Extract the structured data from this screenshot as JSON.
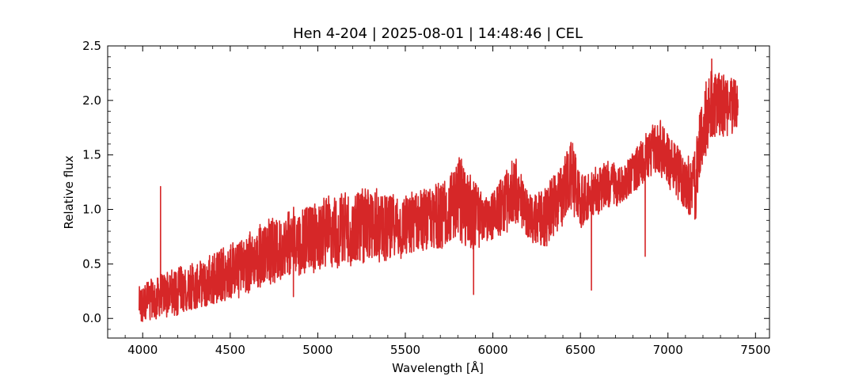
{
  "chart_data": {
    "type": "line",
    "title": "Hen 4-204 | 2025-08-01 | 14:48:46 | CEL",
    "xlabel": "Wavelength [Å]",
    "ylabel": "Relative flux",
    "xlim": [
      3800,
      7580
    ],
    "ylim": [
      -0.18,
      2.5
    ],
    "x_major_ticks": [
      4000,
      4500,
      5000,
      5500,
      6000,
      6500,
      7000,
      7500
    ],
    "x_tick_labels": [
      "4000",
      "4500",
      "5000",
      "5500",
      "6000",
      "6500",
      "7000",
      "7500"
    ],
    "x_minor_step": 100,
    "y_major_ticks": [
      0.0,
      0.5,
      1.0,
      1.5,
      2.0,
      2.5
    ],
    "y_tick_labels": [
      "0.0",
      "0.5",
      "1.0",
      "1.5",
      "2.0",
      "2.5"
    ],
    "y_minor_step": 0.1,
    "ticks_direction": "in",
    "ticks_on_all_sides": true,
    "grid": false,
    "legend": "none",
    "line_color": "#d62728",
    "series": [
      {
        "x_range": [
          3980,
          7400
        ],
        "envelope_x": [
          3980,
          4100,
          4300,
          4500,
          4700,
          4900,
          5100,
          5300,
          5500,
          5700,
          5800,
          5900,
          5950,
          6050,
          6130,
          6200,
          6300,
          6400,
          6450,
          6500,
          6550,
          6650,
          6750,
          6850,
          6950,
          7050,
          7100,
          7150,
          7200,
          7250,
          7300,
          7400
        ],
        "envelope_upper": [
          0.32,
          0.42,
          0.52,
          0.68,
          0.9,
          1.05,
          1.15,
          1.2,
          1.15,
          1.25,
          1.5,
          1.32,
          1.1,
          1.3,
          1.5,
          1.15,
          1.2,
          1.45,
          1.65,
          1.35,
          1.35,
          1.45,
          1.4,
          1.65,
          1.85,
          1.6,
          1.5,
          1.5,
          2.1,
          2.3,
          2.25,
          2.2
        ],
        "envelope_lower": [
          -0.05,
          0.0,
          0.05,
          0.15,
          0.3,
          0.4,
          0.45,
          0.5,
          0.55,
          0.6,
          0.7,
          0.6,
          0.7,
          0.75,
          0.85,
          0.7,
          0.65,
          0.85,
          1.0,
          0.75,
          0.9,
          1.0,
          1.05,
          1.2,
          1.3,
          1.1,
          0.95,
          0.8,
          1.4,
          1.6,
          1.65,
          1.7
        ],
        "features": [
          {
            "x": 4102,
            "y": 1.21
          },
          {
            "x": 4340,
            "y": 0.16
          },
          {
            "x": 4861,
            "y": 0.2
          },
          {
            "x": 5890,
            "y": 0.22
          },
          {
            "x": 6563,
            "y": 0.26
          },
          {
            "x": 6870,
            "y": 0.57
          },
          {
            "x": 7250,
            "y": 2.38
          }
        ]
      }
    ]
  }
}
